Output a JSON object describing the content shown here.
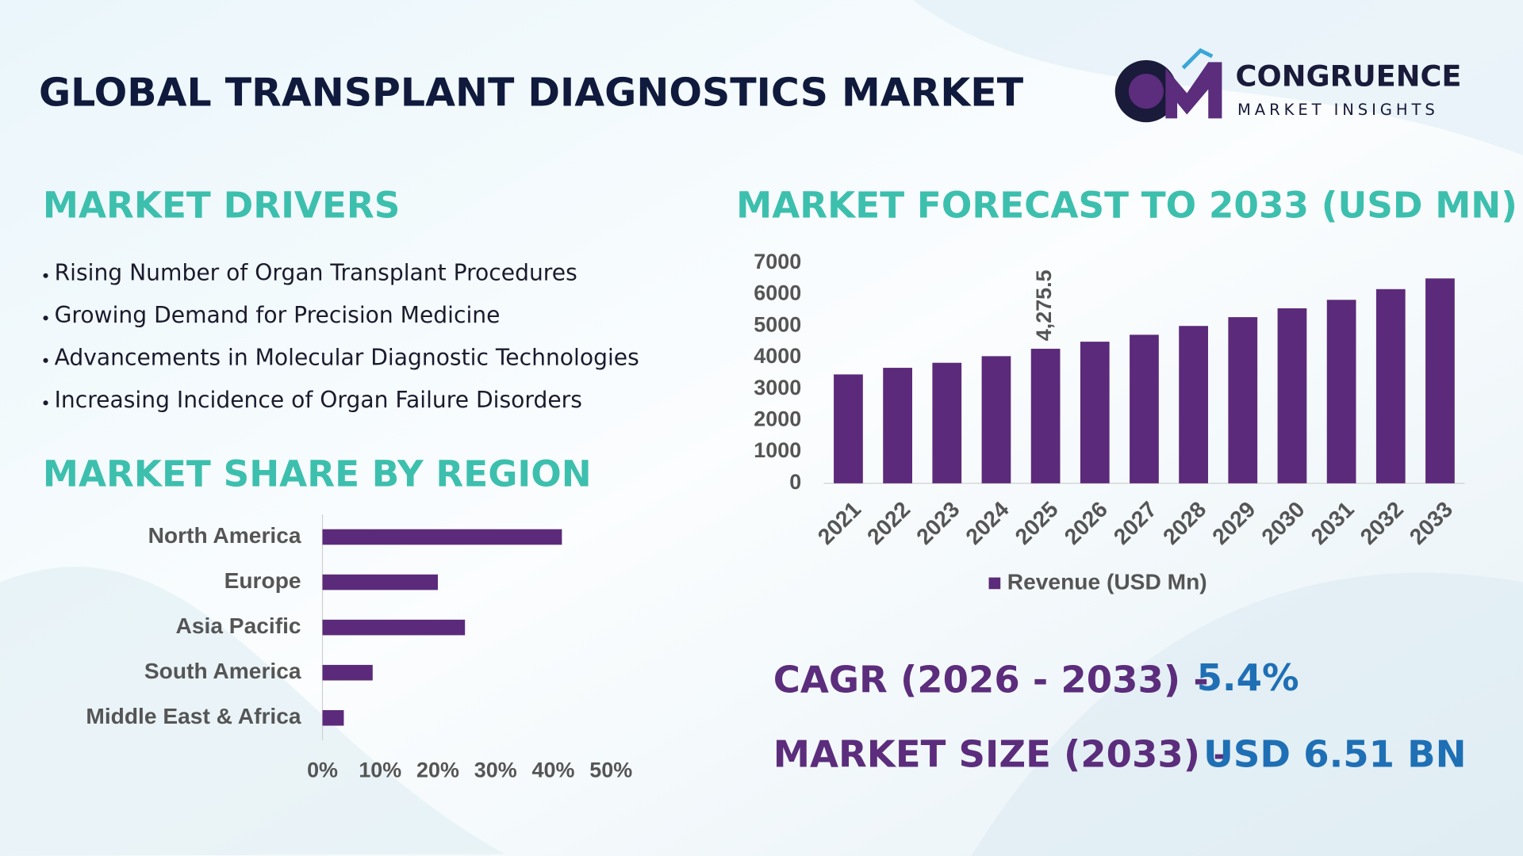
{
  "header": {
    "title": "GLOBAL TRANSPLANT DIAGNOSTICS MARKET"
  },
  "logo": {
    "name": "CONGRUENCE",
    "tagline": "MARKET INSIGHTS"
  },
  "drivers": {
    "title": "MARKET DRIVERS",
    "items": [
      "Rising Number of Organ Transplant Procedures",
      "Growing Demand for Precision Medicine",
      "Advancements in Molecular Diagnostic Technologies",
      "Increasing Incidence of Organ Failure Disorders"
    ]
  },
  "chart_data": [
    {
      "type": "bar",
      "title": "MARKET FORECAST TO 2033 (USD MN)",
      "categories": [
        "2021",
        "2022",
        "2023",
        "2024",
        "2025",
        "2026",
        "2027",
        "2028",
        "2029",
        "2030",
        "2031",
        "2032",
        "2033"
      ],
      "series": [
        {
          "name": "Revenue (USD Mn)",
          "color": "#5b2a7a",
          "values": [
            3460,
            3670,
            3830,
            4040,
            4275.5,
            4500,
            4720,
            5000,
            5280,
            5560,
            5830,
            6170,
            6510
          ],
          "value_labels": [
            null,
            null,
            null,
            null,
            "4,275.5",
            null,
            null,
            null,
            null,
            null,
            null,
            null,
            null
          ]
        }
      ],
      "ylim": [
        0,
        7000
      ],
      "yticks": [
        0,
        1000,
        2000,
        3000,
        4000,
        5000,
        6000,
        7000
      ],
      "legend": "bottom"
    },
    {
      "type": "barh",
      "title": "MARKET SHARE BY REGION",
      "categories": [
        "North America",
        "Europe",
        "Asia Pacific",
        "South America",
        "Middle East & Africa"
      ],
      "values": [
        41.5,
        20,
        24.7,
        8.7,
        3.7
      ],
      "color": "#5b2a7a",
      "xlim": [
        0,
        50
      ],
      "xticks": [
        {
          "value": 0,
          "label": "0%"
        },
        {
          "value": 10,
          "label": "10%"
        },
        {
          "value": 20,
          "label": "20%"
        },
        {
          "value": 30,
          "label": "30%"
        },
        {
          "value": 40,
          "label": "40%"
        },
        {
          "value": 50,
          "label": "50%"
        }
      ]
    }
  ],
  "stats": {
    "cagr_label": "CAGR (2026 - 2033) -",
    "cagr_value": "5.4%",
    "size_label": "MARKET SIZE (2033) –",
    "size_value": "USD 6.51 BN"
  }
}
